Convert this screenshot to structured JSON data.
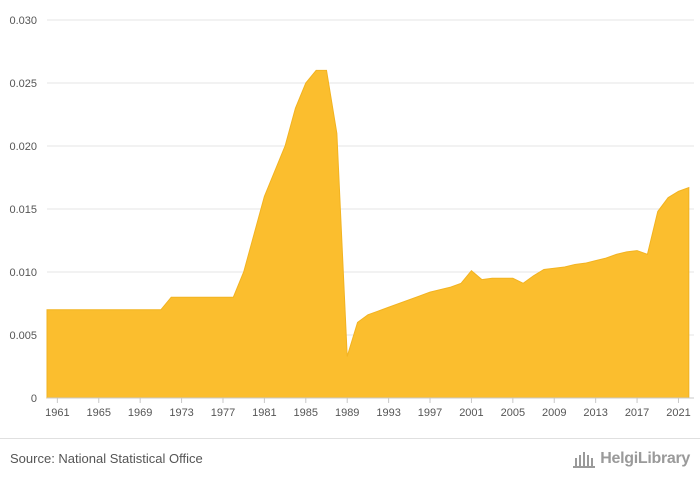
{
  "chart_data": {
    "type": "area",
    "color": "#fbbe2e",
    "grid": true,
    "ylim": [
      0,
      0.03
    ],
    "yticks": [
      0,
      0.005,
      0.01,
      0.015,
      0.02,
      0.025,
      0.03
    ],
    "ytick_labels": [
      "0",
      "0.005",
      "0.010",
      "0.015",
      "0.020",
      "0.025",
      "0.030"
    ],
    "xlim": [
      1960,
      2022.5
    ],
    "xticks": [
      1961,
      1965,
      1969,
      1973,
      1977,
      1981,
      1985,
      1989,
      1993,
      1997,
      2001,
      2005,
      2009,
      2013,
      2017,
      2021
    ],
    "xtick_labels": [
      "1961",
      "1965",
      "1969",
      "1973",
      "1977",
      "1981",
      "1985",
      "1989",
      "1993",
      "1997",
      "2001",
      "2005",
      "2009",
      "2013",
      "2017",
      "2021"
    ],
    "x": [
      1960,
      1961,
      1962,
      1963,
      1964,
      1965,
      1966,
      1967,
      1968,
      1969,
      1970,
      1971,
      1972,
      1973,
      1974,
      1975,
      1976,
      1977,
      1978,
      1979,
      1980,
      1981,
      1982,
      1983,
      1984,
      1985,
      1986,
      1987,
      1988,
      1989,
      1990,
      1991,
      1992,
      1993,
      1994,
      1995,
      1996,
      1997,
      1998,
      1999,
      2000,
      2001,
      2002,
      2003,
      2004,
      2005,
      2006,
      2007,
      2008,
      2009,
      2010,
      2011,
      2012,
      2013,
      2014,
      2015,
      2016,
      2017,
      2018,
      2019,
      2020,
      2021,
      2022
    ],
    "values": [
      0.007,
      0.007,
      0.007,
      0.007,
      0.007,
      0.007,
      0.007,
      0.007,
      0.007,
      0.007,
      0.007,
      0.007,
      0.008,
      0.008,
      0.008,
      0.008,
      0.008,
      0.008,
      0.008,
      0.01,
      0.013,
      0.016,
      0.018,
      0.02,
      0.023,
      0.025,
      0.026,
      0.026,
      0.021,
      0.0033,
      0.006,
      0.0066,
      0.0069,
      0.0072,
      0.0075,
      0.0078,
      0.0081,
      0.0084,
      0.0086,
      0.0088,
      0.0091,
      0.0101,
      0.0094,
      0.0095,
      0.0095,
      0.0095,
      0.0091,
      0.0097,
      0.0102,
      0.0103,
      0.0104,
      0.0106,
      0.0107,
      0.0109,
      0.0111,
      0.0114,
      0.0116,
      0.0117,
      0.0114,
      0.0148,
      0.0159,
      0.0164,
      0.0167
    ]
  },
  "footer": {
    "source": "Source: National Statistical Office",
    "logo_text": "HelgiLibrary"
  }
}
